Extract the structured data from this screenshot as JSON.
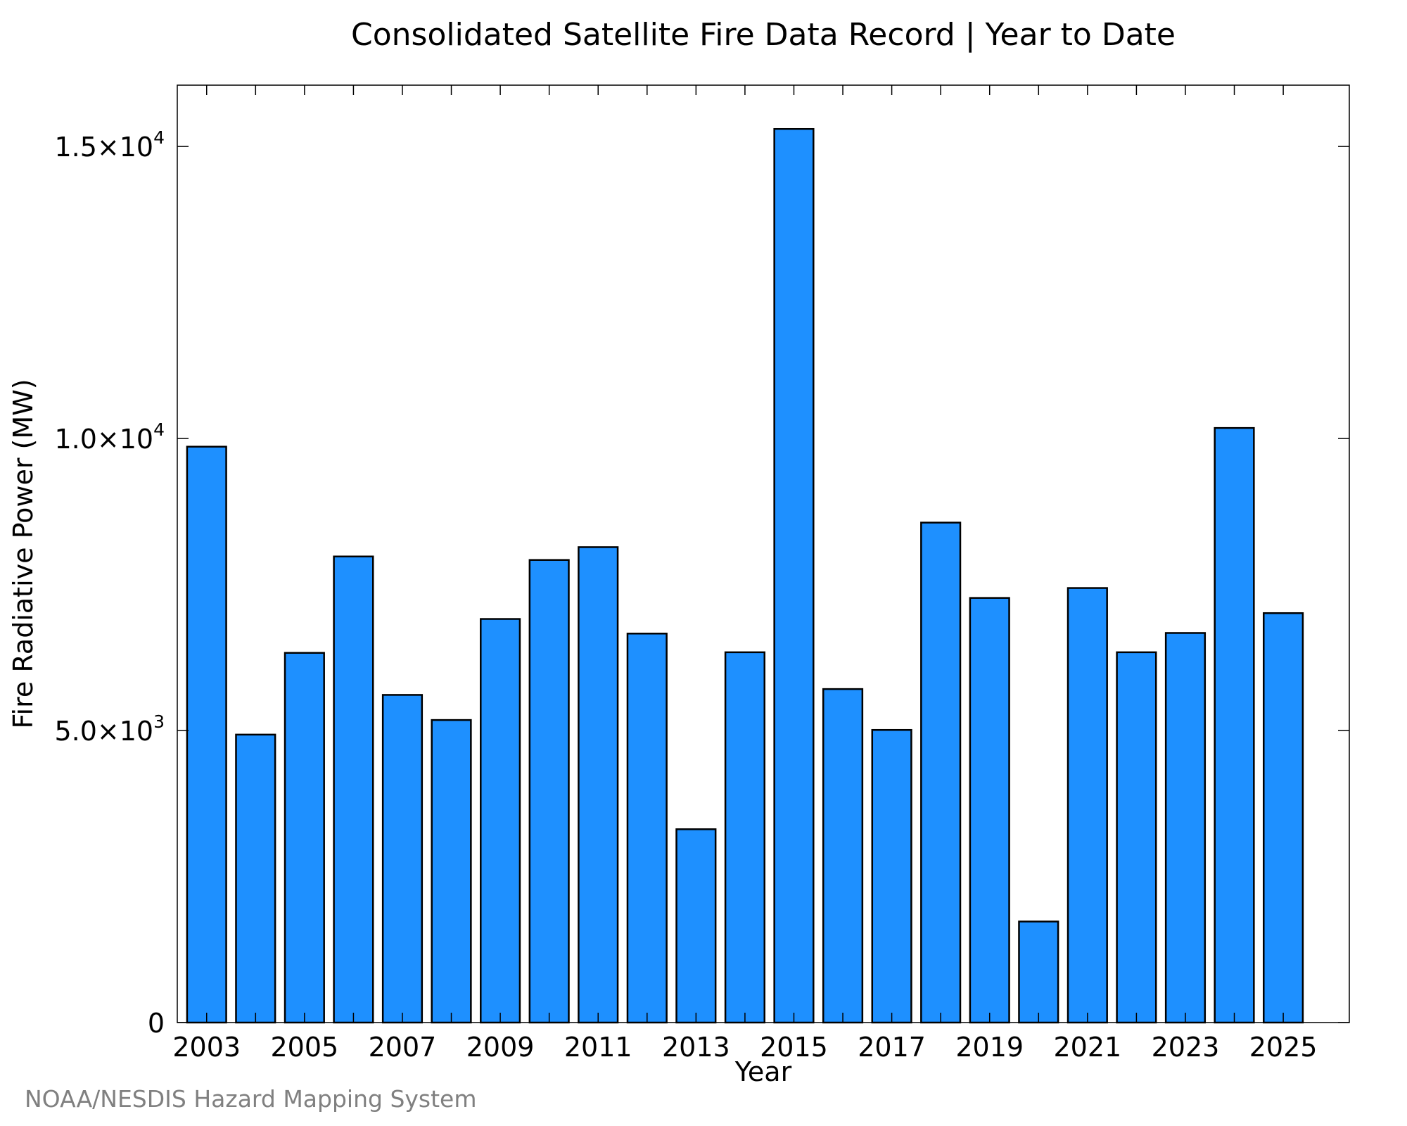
{
  "chart_data": {
    "type": "bar",
    "title": "Consolidated Satellite Fire Data Record | Year to Date",
    "xlabel": "Year",
    "ylabel": "Fire Radiative Power (MW)",
    "categories": [
      "2003",
      "2004",
      "2005",
      "2006",
      "2007",
      "2008",
      "2009",
      "2010",
      "2011",
      "2012",
      "2013",
      "2014",
      "2015",
      "2016",
      "2017",
      "2018",
      "2019",
      "2020",
      "2021",
      "2022",
      "2023",
      "2024",
      "2025"
    ],
    "values": [
      9860,
      4930,
      6330,
      7980,
      5610,
      5180,
      6910,
      7920,
      8140,
      6660,
      3310,
      6340,
      15300,
      5710,
      5010,
      8560,
      7270,
      1730,
      7440,
      6340,
      6670,
      10180,
      7010
    ],
    "ylim": [
      0,
      16050
    ],
    "x_tick_labels": [
      "2003",
      "2005",
      "2007",
      "2009",
      "2011",
      "2013",
      "2015",
      "2017",
      "2019",
      "2021",
      "2023",
      "2025"
    ],
    "y_ticks": [
      {
        "value": 0,
        "mantissa": "0",
        "exponent": ""
      },
      {
        "value": 5000,
        "mantissa": "5.0×10",
        "exponent": "3"
      },
      {
        "value": 10000,
        "mantissa": "1.0×10",
        "exponent": "4"
      },
      {
        "value": 15000,
        "mantissa": "1.5×10",
        "exponent": "4"
      }
    ],
    "bar_color": "#1e90ff",
    "grid": false,
    "legend": "none"
  },
  "footer": {
    "credit": "NOAA/NESDIS Hazard Mapping System"
  }
}
